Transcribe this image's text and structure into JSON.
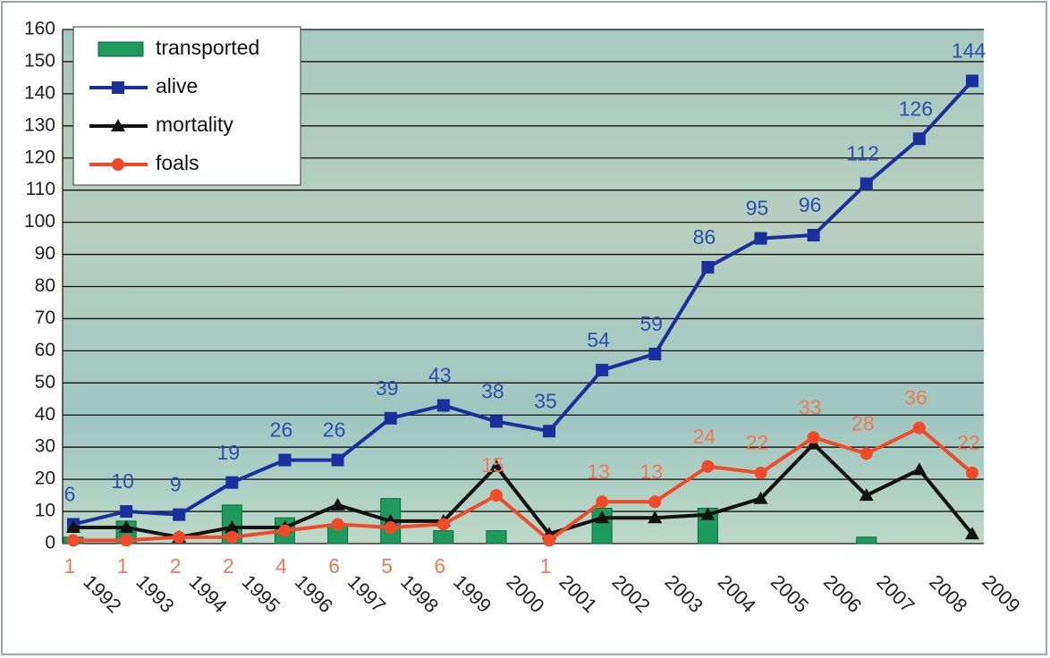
{
  "chart_data": {
    "type": "line",
    "categories": [
      "1992",
      "1993",
      "1994",
      "1995",
      "1996",
      "1997",
      "1998",
      "1999",
      "2000",
      "2001",
      "2002",
      "2003",
      "2004",
      "2005",
      "2006",
      "2007",
      "2008",
      "2009"
    ],
    "ylim": [
      0,
      160
    ],
    "yticks": [
      0,
      10,
      20,
      30,
      40,
      50,
      60,
      70,
      80,
      90,
      100,
      110,
      120,
      130,
      140,
      150,
      160
    ],
    "grid": true,
    "legend": "top-left",
    "series": [
      {
        "name": "transported",
        "type": "bar",
        "color": "#1d9a5c",
        "values": [
          2,
          7,
          0,
          12,
          8,
          6,
          14,
          4,
          4,
          0,
          11,
          0,
          11,
          0,
          0,
          2,
          0,
          0
        ]
      },
      {
        "name": "alive",
        "type": "line",
        "color": "#1b2f9e",
        "label_color": "#2b4fae",
        "marker": "square",
        "show_labels": true,
        "values": [
          6,
          10,
          9,
          19,
          26,
          26,
          39,
          43,
          38,
          35,
          54,
          59,
          86,
          95,
          96,
          112,
          126,
          144
        ]
      },
      {
        "name": "mortality",
        "type": "line",
        "color": "#111111",
        "marker": "triangle",
        "show_labels": false,
        "values": [
          5,
          5,
          2,
          5,
          5,
          12,
          7,
          7,
          24,
          3,
          8,
          8,
          9,
          14,
          31,
          15,
          23,
          3
        ]
      },
      {
        "name": "foals",
        "type": "line",
        "color": "#f04a28",
        "label_color": "#f07a5a",
        "marker": "circle",
        "show_labels": true,
        "values": [
          1,
          1,
          2,
          2,
          4,
          6,
          5,
          6,
          15,
          1,
          13,
          13,
          24,
          22,
          33,
          28,
          36,
          22
        ]
      }
    ]
  }
}
